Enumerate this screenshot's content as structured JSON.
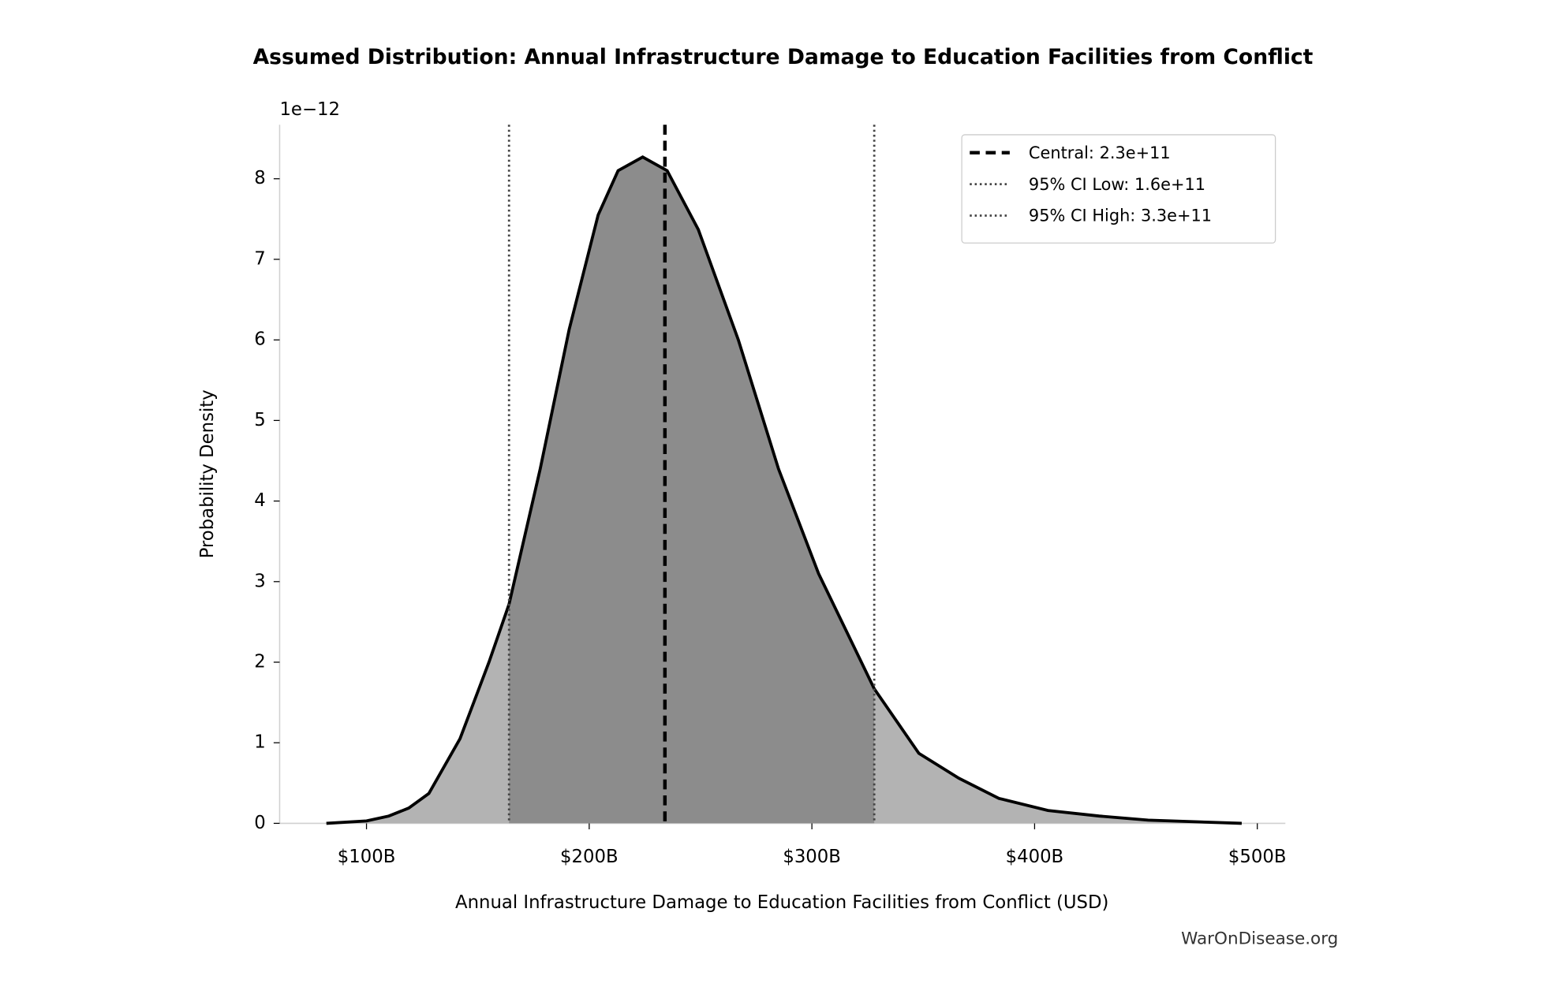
{
  "chart_data": {
    "type": "density",
    "title": "Assumed Distribution: Annual Infrastructure Damage to Education Facilities from Conflict",
    "x_label": "Annual Infrastructure Damage to Education Facilities from Conflict (USD)",
    "y_label": "Probability Density",
    "y_offset_label": "1e−12",
    "source": "WarOnDisease.org",
    "x": [
      82000000000,
      100000000000,
      110000000000,
      119000000000,
      128000000000,
      142000000000,
      155000000000,
      164000000000,
      178000000000,
      191000000000,
      204000000000,
      213000000000,
      224000000000,
      235000000000,
      249000000000,
      267000000000,
      285000000000,
      303000000000,
      328000000000,
      348000000000,
      366000000000,
      384000000000,
      406000000000,
      429000000000,
      451000000000,
      493000000000
    ],
    "values": [
      0.0,
      0.03,
      0.09,
      0.19,
      0.37,
      1.05,
      2.0,
      2.72,
      4.4,
      6.13,
      7.55,
      8.1,
      8.27,
      8.1,
      7.37,
      6.0,
      4.4,
      3.1,
      1.67,
      0.87,
      0.56,
      0.31,
      0.16,
      0.09,
      0.04,
      0.0
    ],
    "color": "#000000",
    "fill_color": "#b3b3b3",
    "ci_fill_color": "#8c8c8c",
    "reference_lines": [
      {
        "name": "Central: 2.3e+11",
        "value": 234000000000,
        "style": "dashed",
        "color": "#000000"
      },
      {
        "name": "95% CI Low: 1.6e+11",
        "value": 164000000000,
        "style": "dotted",
        "color": "#444444"
      },
      {
        "name": "95% CI High: 3.3e+11",
        "value": 328000000000,
        "style": "dotted",
        "color": "#444444"
      }
    ],
    "xlim": [
      61000000000,
      512600000000
    ],
    "ylim": [
      0,
      8.67
    ],
    "xticks": [
      {
        "value": 100000000000,
        "label": "$100B"
      },
      {
        "value": 200000000000,
        "label": "$200B"
      },
      {
        "value": 300000000000,
        "label": "$300B"
      },
      {
        "value": 400000000000,
        "label": "$400B"
      },
      {
        "value": 500000000000,
        "label": "$500B"
      }
    ],
    "yticks": [
      0,
      1,
      2,
      3,
      4,
      5,
      6,
      7,
      8
    ],
    "legend_position": "upper right"
  }
}
